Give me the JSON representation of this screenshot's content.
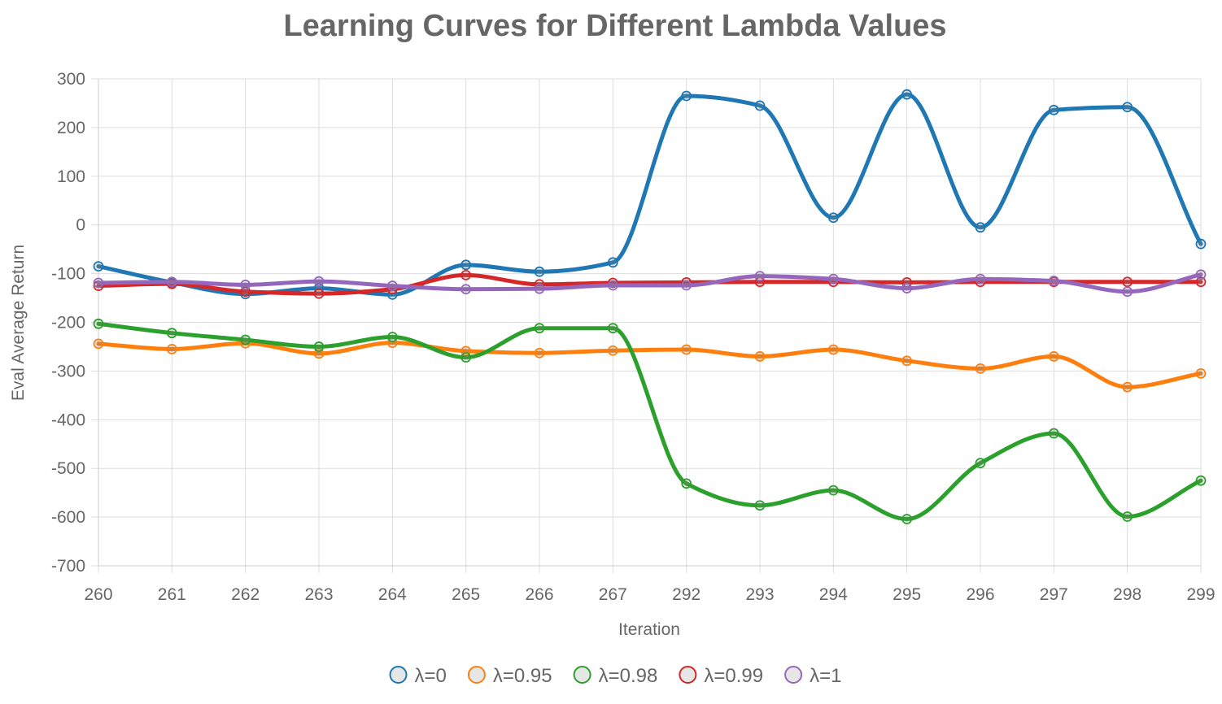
{
  "chart_data": {
    "type": "line",
    "title": "Learning Curves for Different Lambda Values",
    "xlabel": "Iteration",
    "ylabel": "Eval Average Return",
    "categories": [
      "260",
      "261",
      "262",
      "263",
      "264",
      "265",
      "266",
      "267",
      "292",
      "293",
      "294",
      "295",
      "296",
      "297",
      "298",
      "299"
    ],
    "yticks": [
      "300",
      "200",
      "100",
      "0",
      "-100",
      "-200",
      "-300",
      "-400",
      "-500",
      "-600",
      "-700"
    ],
    "ylim": [
      -700,
      300
    ],
    "grid": true,
    "legend_position": "bottom",
    "series": [
      {
        "name": "λ=0",
        "color": "#1f77b4",
        "values": [
          -85,
          -118,
          -142,
          -130,
          -143,
          -82,
          -96,
          -77,
          265,
          245,
          15,
          268,
          -5,
          236,
          242,
          -39
        ]
      },
      {
        "name": "λ=0.95",
        "color": "#ff7f0e",
        "values": [
          -244,
          -255,
          -243,
          -264,
          -242,
          -259,
          -263,
          -258,
          -256,
          -270,
          -256,
          -279,
          -295,
          -270,
          -333,
          -305
        ]
      },
      {
        "name": "λ=0.98",
        "color": "#2ca02c",
        "values": [
          -203,
          -222,
          -236,
          -250,
          -230,
          -272,
          -212,
          -212,
          -531,
          -576,
          -545,
          -604,
          -489,
          -428,
          -599,
          -525
        ]
      },
      {
        "name": "λ=0.99",
        "color": "#d62728",
        "values": [
          -125,
          -121,
          -137,
          -141,
          -132,
          -103,
          -122,
          -119,
          -118,
          -117,
          -117,
          -118,
          -117,
          -117,
          -117,
          -117
        ]
      },
      {
        "name": "λ=1",
        "color": "#9467bd",
        "values": [
          -119,
          -117,
          -123,
          -116,
          -125,
          -132,
          -131,
          -124,
          -124,
          -105,
          -111,
          -130,
          -111,
          -115,
          -137,
          -102
        ]
      }
    ]
  }
}
